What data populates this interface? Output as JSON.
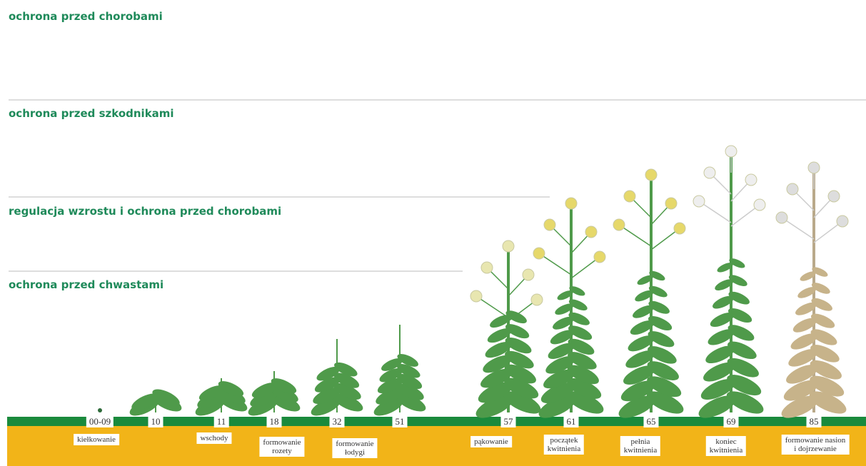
{
  "sections": [
    {
      "label": "ochrona przed chorobami"
    },
    {
      "label": "ochrona przed szkodnikami"
    },
    {
      "label": "regulacja wzrostu i ochrona przed chorobami"
    },
    {
      "label": "ochrona przed chwastami"
    }
  ],
  "stages": [
    {
      "code": "00-09",
      "label": [
        "kiełkowanie"
      ]
    },
    {
      "code": "10"
    },
    {
      "code": "11",
      "label": [
        "wschody"
      ]
    },
    {
      "code": "18",
      "label": [
        "formowanie",
        "rozety"
      ]
    },
    {
      "code": "32",
      "label": [
        "formowanie",
        "łodygi"
      ]
    },
    {
      "code": "51"
    },
    {
      "code": "57",
      "label": [
        "pąkowanie"
      ]
    },
    {
      "code": "61",
      "label": [
        "początek",
        "kwitnienia"
      ]
    },
    {
      "code": "65",
      "label": [
        "pełnia",
        "kwitnienia"
      ]
    },
    {
      "code": "69",
      "label": [
        "koniec",
        "kwitnienia"
      ]
    },
    {
      "code": "85",
      "label": [
        "formowanie nasion",
        "i dojrzewanie"
      ]
    }
  ]
}
